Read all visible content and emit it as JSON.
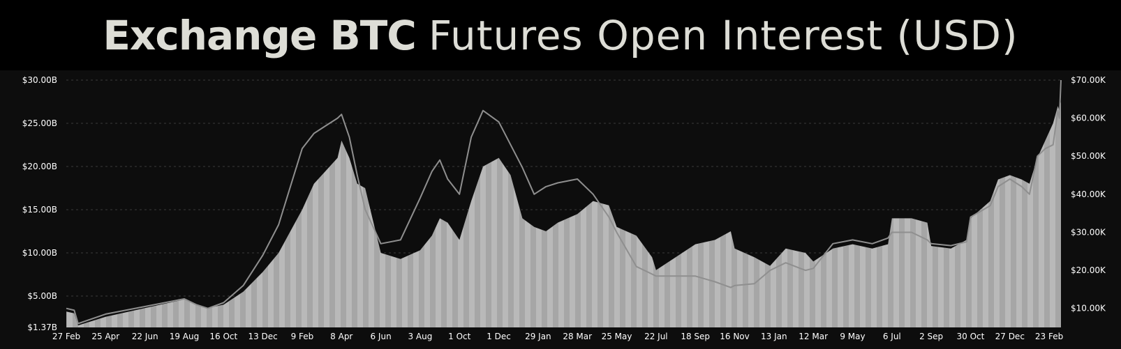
{
  "title": {
    "bold": "Exchange BTC",
    "light": "Futures Open Interest (USD)"
  },
  "colors": {
    "background": "#000000",
    "plot_background": "#0d0d0d",
    "open_interest_fill": "#b9b9b9",
    "price_line": "#8f8f8f",
    "grid": "#3a3a3a",
    "text": "#ffffff"
  },
  "chart_data": {
    "type": "area",
    "title": "Exchange BTC Futures Open Interest (USD)",
    "grid": true,
    "y_left": {
      "ylim": [
        1.37,
        30.0
      ],
      "ticks": [
        "$1.37B",
        "$5.00B",
        "$10.00B",
        "$15.00B",
        "$20.00B",
        "$25.00B",
        "$30.00B"
      ],
      "tick_values": [
        1.37,
        5,
        10,
        15,
        20,
        25,
        30
      ]
    },
    "y_right": {
      "ylim": [
        5.0,
        70.0
      ],
      "ticks": [
        "$10.00K",
        "$20.00K",
        "$30.00K",
        "$40.00K",
        "$50.00K",
        "$60.00K",
        "$70.00K"
      ],
      "tick_values": [
        10,
        20,
        30,
        40,
        50,
        60,
        70
      ]
    },
    "x_ticks": [
      "27 Feb",
      "25 Apr",
      "22 Jun",
      "19 Aug",
      "16 Oct",
      "13 Dec",
      "9 Feb",
      "8 Apr",
      "6 Jun",
      "3 Aug",
      "1 Oct",
      "1 Dec",
      "29 Jan",
      "28 Mar",
      "25 May",
      "22 Jul",
      "18 Sep",
      "16 Nov",
      "13 Jan",
      "12 Mar",
      "9 May",
      "6 Jul",
      "2 Sep",
      "30 Oct",
      "27 Dec",
      "23 Feb"
    ],
    "x_range": [
      0,
      25.3
    ],
    "series": [
      {
        "axis": "left",
        "kind": "area",
        "x": [
          0,
          0.2,
          0.3,
          1,
          2,
          3,
          3.3,
          3.6,
          4,
          4.5,
          5,
          5.4,
          5.7,
          6,
          6.3,
          6.6,
          6.9,
          7,
          7.2,
          7.4,
          7.6,
          8,
          8.5,
          9,
          9.3,
          9.5,
          9.7,
          10,
          10.3,
          10.6,
          11,
          11.3,
          11.6,
          11.9,
          12.2,
          12.5,
          13,
          13.4,
          13.8,
          14,
          14.5,
          14.9,
          15,
          15.5,
          16,
          16.5,
          16.9,
          17,
          17.5,
          17.9,
          18.3,
          18.8,
          19,
          19.5,
          20,
          20.5,
          20.9,
          21,
          21.5,
          21.9,
          22,
          22.5,
          22.9,
          23,
          23.5,
          23.7,
          24,
          24.3,
          24.5,
          24.7,
          24.9,
          25.1,
          25.22,
          25.26,
          25.3
        ],
        "values": [
          3.2,
          3.0,
          1.6,
          2.6,
          3.6,
          4.6,
          4.0,
          3.6,
          4.0,
          5.5,
          7.8,
          10.0,
          12.5,
          15.0,
          18.0,
          19.5,
          21.0,
          23.0,
          21.0,
          18.0,
          17.5,
          10.0,
          9.3,
          10.3,
          12.0,
          14.0,
          13.5,
          11.5,
          16.0,
          20.0,
          21.0,
          19.0,
          14.0,
          13.0,
          12.5,
          13.5,
          14.5,
          16.0,
          15.5,
          13.0,
          12.0,
          9.5,
          8.0,
          9.5,
          11.0,
          11.5,
          12.5,
          10.5,
          9.5,
          8.5,
          10.5,
          10.0,
          9.0,
          10.5,
          11.0,
          10.5,
          11.0,
          14.0,
          14.0,
          13.5,
          10.8,
          10.5,
          11.5,
          14.0,
          16.0,
          18.5,
          19.0,
          18.5,
          18.0,
          21.0,
          23.0,
          25.0,
          27.0,
          26.5,
          27.5
        ]
      },
      {
        "axis": "right",
        "kind": "line",
        "x": [
          0,
          0.2,
          0.3,
          1,
          2,
          3,
          3.3,
          3.6,
          4,
          4.5,
          5,
          5.4,
          5.7,
          6,
          6.3,
          6.6,
          6.9,
          7,
          7.2,
          7.4,
          7.6,
          8,
          8.5,
          9,
          9.3,
          9.5,
          9.7,
          10,
          10.3,
          10.6,
          11,
          11.3,
          11.6,
          11.9,
          12.2,
          12.5,
          13,
          13.4,
          13.8,
          14,
          14.5,
          14.9,
          15,
          15.5,
          16,
          16.5,
          16.9,
          17,
          17.5,
          17.9,
          18.3,
          18.8,
          19,
          19.5,
          20,
          20.5,
          20.9,
          21,
          21.5,
          21.9,
          22,
          22.5,
          22.9,
          23,
          23.5,
          23.7,
          24,
          24.3,
          24.5,
          24.7,
          24.9,
          25.1,
          25.22,
          25.26,
          25.3
        ],
        "values": [
          10.0,
          9.5,
          6.0,
          8.5,
          10.5,
          12.5,
          11.0,
          10.0,
          11.5,
          16.0,
          24.0,
          32.0,
          42.0,
          52.0,
          56.0,
          58.0,
          60.0,
          61.0,
          55.0,
          45.0,
          36.0,
          27.0,
          28.0,
          39.0,
          46.0,
          49.0,
          44.0,
          40.0,
          55.0,
          62.0,
          59.0,
          53.0,
          47.0,
          40.0,
          42.0,
          43.0,
          44.0,
          40.0,
          34.0,
          30.0,
          21.0,
          19.0,
          18.5,
          18.5,
          18.5,
          17.0,
          15.5,
          16.0,
          16.5,
          20.0,
          22.0,
          20.0,
          20.5,
          27.0,
          28.0,
          27.0,
          28.5,
          30.0,
          30.0,
          28.0,
          27.0,
          26.5,
          27.5,
          34.0,
          37.0,
          42.0,
          44.0,
          42.0,
          40.0,
          50.0,
          52.0,
          53.0,
          62.0,
          60.0,
          70.0
        ]
      }
    ]
  }
}
